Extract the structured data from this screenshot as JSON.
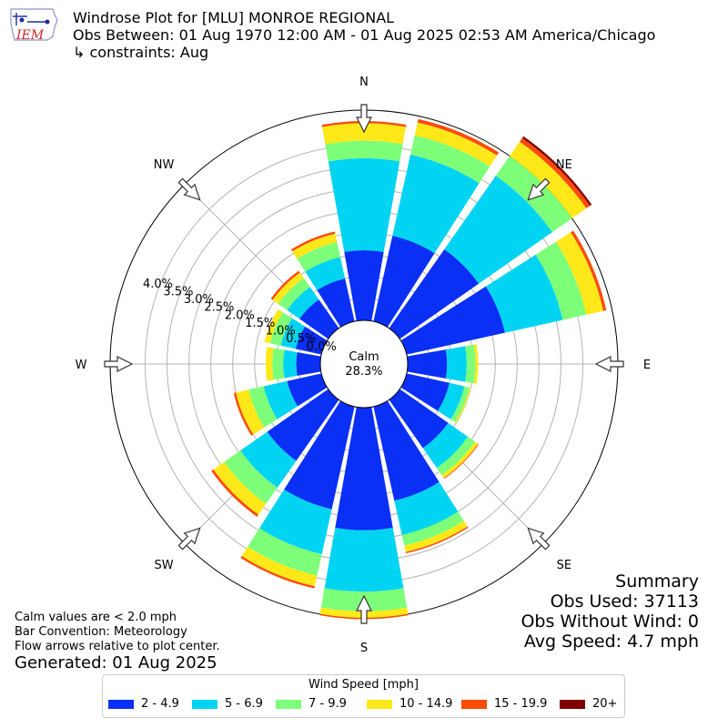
{
  "logo": {
    "text": "IEM",
    "color": "#cc2222",
    "accent": "#1a2b9c"
  },
  "header": {
    "title": "Windrose Plot for [MLU] MONROE REGIONAL",
    "subtitle": "Obs Between: 01 Aug 1970 12:00 AM - 01 Aug 2025 02:53 AM America/Chicago",
    "constraints": "↳ constraints: Aug"
  },
  "chart_data": {
    "type": "windrose",
    "directions": [
      "N",
      "NNE",
      "NE",
      "ENE",
      "E",
      "ESE",
      "SE",
      "SSE",
      "S",
      "SSW",
      "SW",
      "WSW",
      "W",
      "WNW",
      "NW",
      "NNW"
    ],
    "bins": [
      {
        "label": "2 - 4.9",
        "color": "#0a2ff5"
      },
      {
        "label": "5 - 6.9",
        "color": "#00d4f2"
      },
      {
        "label": "7 - 9.9",
        "color": "#7dff7a"
      },
      {
        "label": "10 - 14.9",
        "color": "#ffe81a"
      },
      {
        "label": "15 - 19.9",
        "color": "#ff4a0a"
      },
      {
        "label": "20+",
        "color": "#800000"
      }
    ],
    "sector_bins": [
      [
        1.6,
        2.1,
        0.4,
        0.4,
        0.05,
        0.0
      ],
      [
        2.0,
        1.9,
        0.45,
        0.3,
        0.08,
        0.0
      ],
      [
        2.2,
        2.05,
        0.55,
        0.4,
        0.1,
        0.05
      ],
      [
        2.3,
        1.35,
        0.55,
        0.4,
        0.07,
        0.0
      ],
      [
        0.9,
        0.45,
        0.2,
        0.06,
        0.0,
        0.0
      ],
      [
        1.0,
        0.35,
        0.12,
        0.03,
        0.0,
        0.0
      ],
      [
        1.35,
        0.55,
        0.2,
        0.08,
        0.02,
        0.0
      ],
      [
        2.2,
        0.8,
        0.25,
        0.15,
        0.03,
        0.0
      ],
      [
        2.8,
        1.4,
        0.45,
        0.15,
        0.03,
        0.0
      ],
      [
        2.4,
        1.05,
        0.5,
        0.25,
        0.05,
        0.0
      ],
      [
        1.7,
        0.75,
        0.45,
        0.3,
        0.06,
        0.0
      ],
      [
        0.8,
        0.55,
        0.35,
        0.3,
        0.05,
        0.0
      ],
      [
        0.55,
        0.3,
        0.25,
        0.15,
        0.0,
        0.0
      ],
      [
        0.6,
        0.35,
        0.25,
        0.13,
        0.0,
        0.0
      ],
      [
        0.8,
        0.35,
        0.25,
        0.15,
        0.05,
        0.0
      ],
      [
        1.0,
        0.5,
        0.35,
        0.2,
        0.05,
        0.0
      ]
    ],
    "radial_ticks": [
      0.0,
      0.5,
      1.0,
      1.5,
      2.0,
      2.5,
      3.0,
      3.5,
      4.0
    ],
    "radial_tick_labels": [
      "0.0%",
      "0.5%",
      "1.0%",
      "1.5%",
      "2.0%",
      "2.5%",
      "3.0%",
      "3.5%",
      "4.0%"
    ],
    "rmax": 4.8,
    "compass_labels": {
      "N": "N",
      "NE": "NE",
      "E": "E",
      "SE": "SE",
      "S": "S",
      "SW": "SW",
      "W": "W",
      "NW": "NW"
    },
    "calm": {
      "label": "Calm",
      "value": "28.3%"
    },
    "legend_title": "Wind Speed [mph]",
    "grid": true
  },
  "summary": {
    "title": "Summary",
    "obs_used": "Obs Used: 37113",
    "obs_without_wind": "Obs Without Wind: 0",
    "avg_speed": "Avg Speed: 4.7 mph"
  },
  "notes": {
    "calm": "Calm values are < 2.0 mph",
    "convention": "Bar Convention: Meteorology",
    "flow": "Flow arrows relative to plot center."
  },
  "generated": "Generated: 01 Aug 2025"
}
